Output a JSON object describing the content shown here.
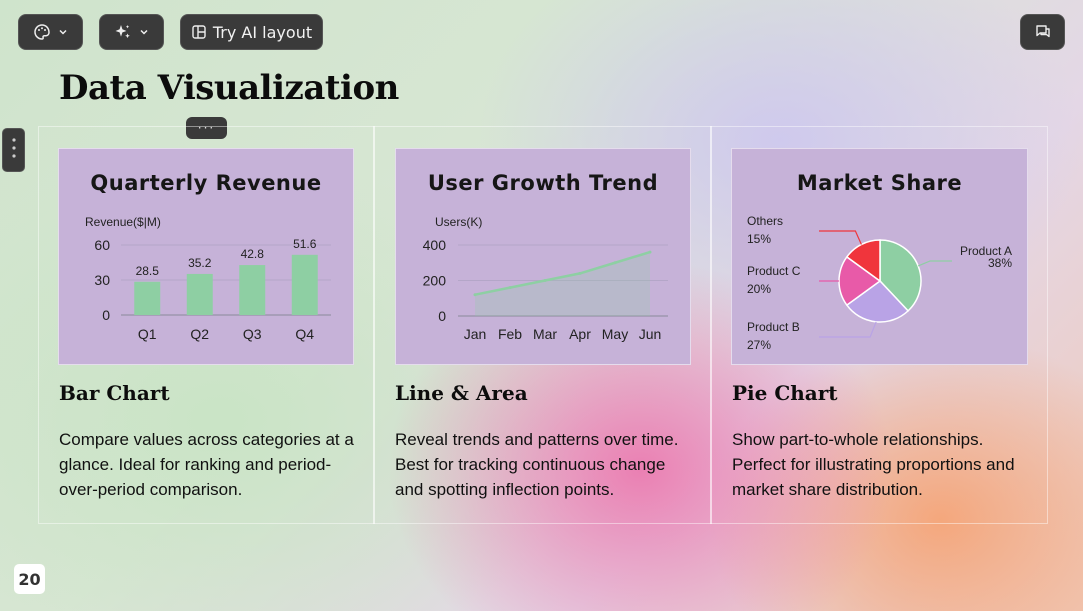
{
  "toolbar": {
    "theme_icon": "palette-icon",
    "ai_icon": "sparkles-icon",
    "layout_label": "Try AI layout",
    "layout_icon": "layout-icon",
    "comment_icon": "comment-icon"
  },
  "slide": {
    "title": "Data Visualization",
    "page_number": "20",
    "more_label": "···"
  },
  "sections": [
    {
      "heading": "Bar Chart",
      "description": "Compare values across categories at a glance. Ideal for ranking and period-over-period comparison."
    },
    {
      "heading": "Line & Area",
      "description": "Reveal trends and patterns over time. Best for tracking continuous change and spotting inflection points."
    },
    {
      "heading": "Pie Chart",
      "description": "Show part-to-whole relationships. Perfect for illustrating proportions and market share distribution."
    }
  ],
  "colors": {
    "card_bg": "#c6b2d8",
    "bar": "#8ecfa3",
    "line": "#8ecfa3",
    "pie_a": "#8ecfa3",
    "pie_b": "#b9a3e6",
    "pie_c": "#e85aa8",
    "pie_others": "#f0353c"
  },
  "chart_data": [
    {
      "type": "bar",
      "title": "Quarterly Revenue",
      "ylabel": "Revenue($|M)",
      "categories": [
        "Q1",
        "Q2",
        "Q3",
        "Q4"
      ],
      "values": [
        28.5,
        35.2,
        42.8,
        51.6
      ],
      "yticks": [
        0,
        30,
        60
      ],
      "ylim": [
        0,
        60
      ],
      "grid": true
    },
    {
      "type": "area",
      "title": "User Growth Trend",
      "ylabel": "Users(K)",
      "categories": [
        "Jan",
        "Feb",
        "Mar",
        "Apr",
        "May",
        "Jun"
      ],
      "values": [
        120,
        160,
        200,
        240,
        300,
        360
      ],
      "yticks": [
        0,
        200,
        400
      ],
      "ylim": [
        0,
        400
      ],
      "grid": true
    },
    {
      "type": "pie",
      "title": "Market Share",
      "slices": [
        {
          "name": "Product A",
          "value": 38,
          "label": "38%"
        },
        {
          "name": "Product B",
          "value": 27,
          "label": "27%"
        },
        {
          "name": "Product C",
          "value": 20,
          "label": "20%"
        },
        {
          "name": "Others",
          "value": 15,
          "label": "15%"
        }
      ]
    }
  ]
}
